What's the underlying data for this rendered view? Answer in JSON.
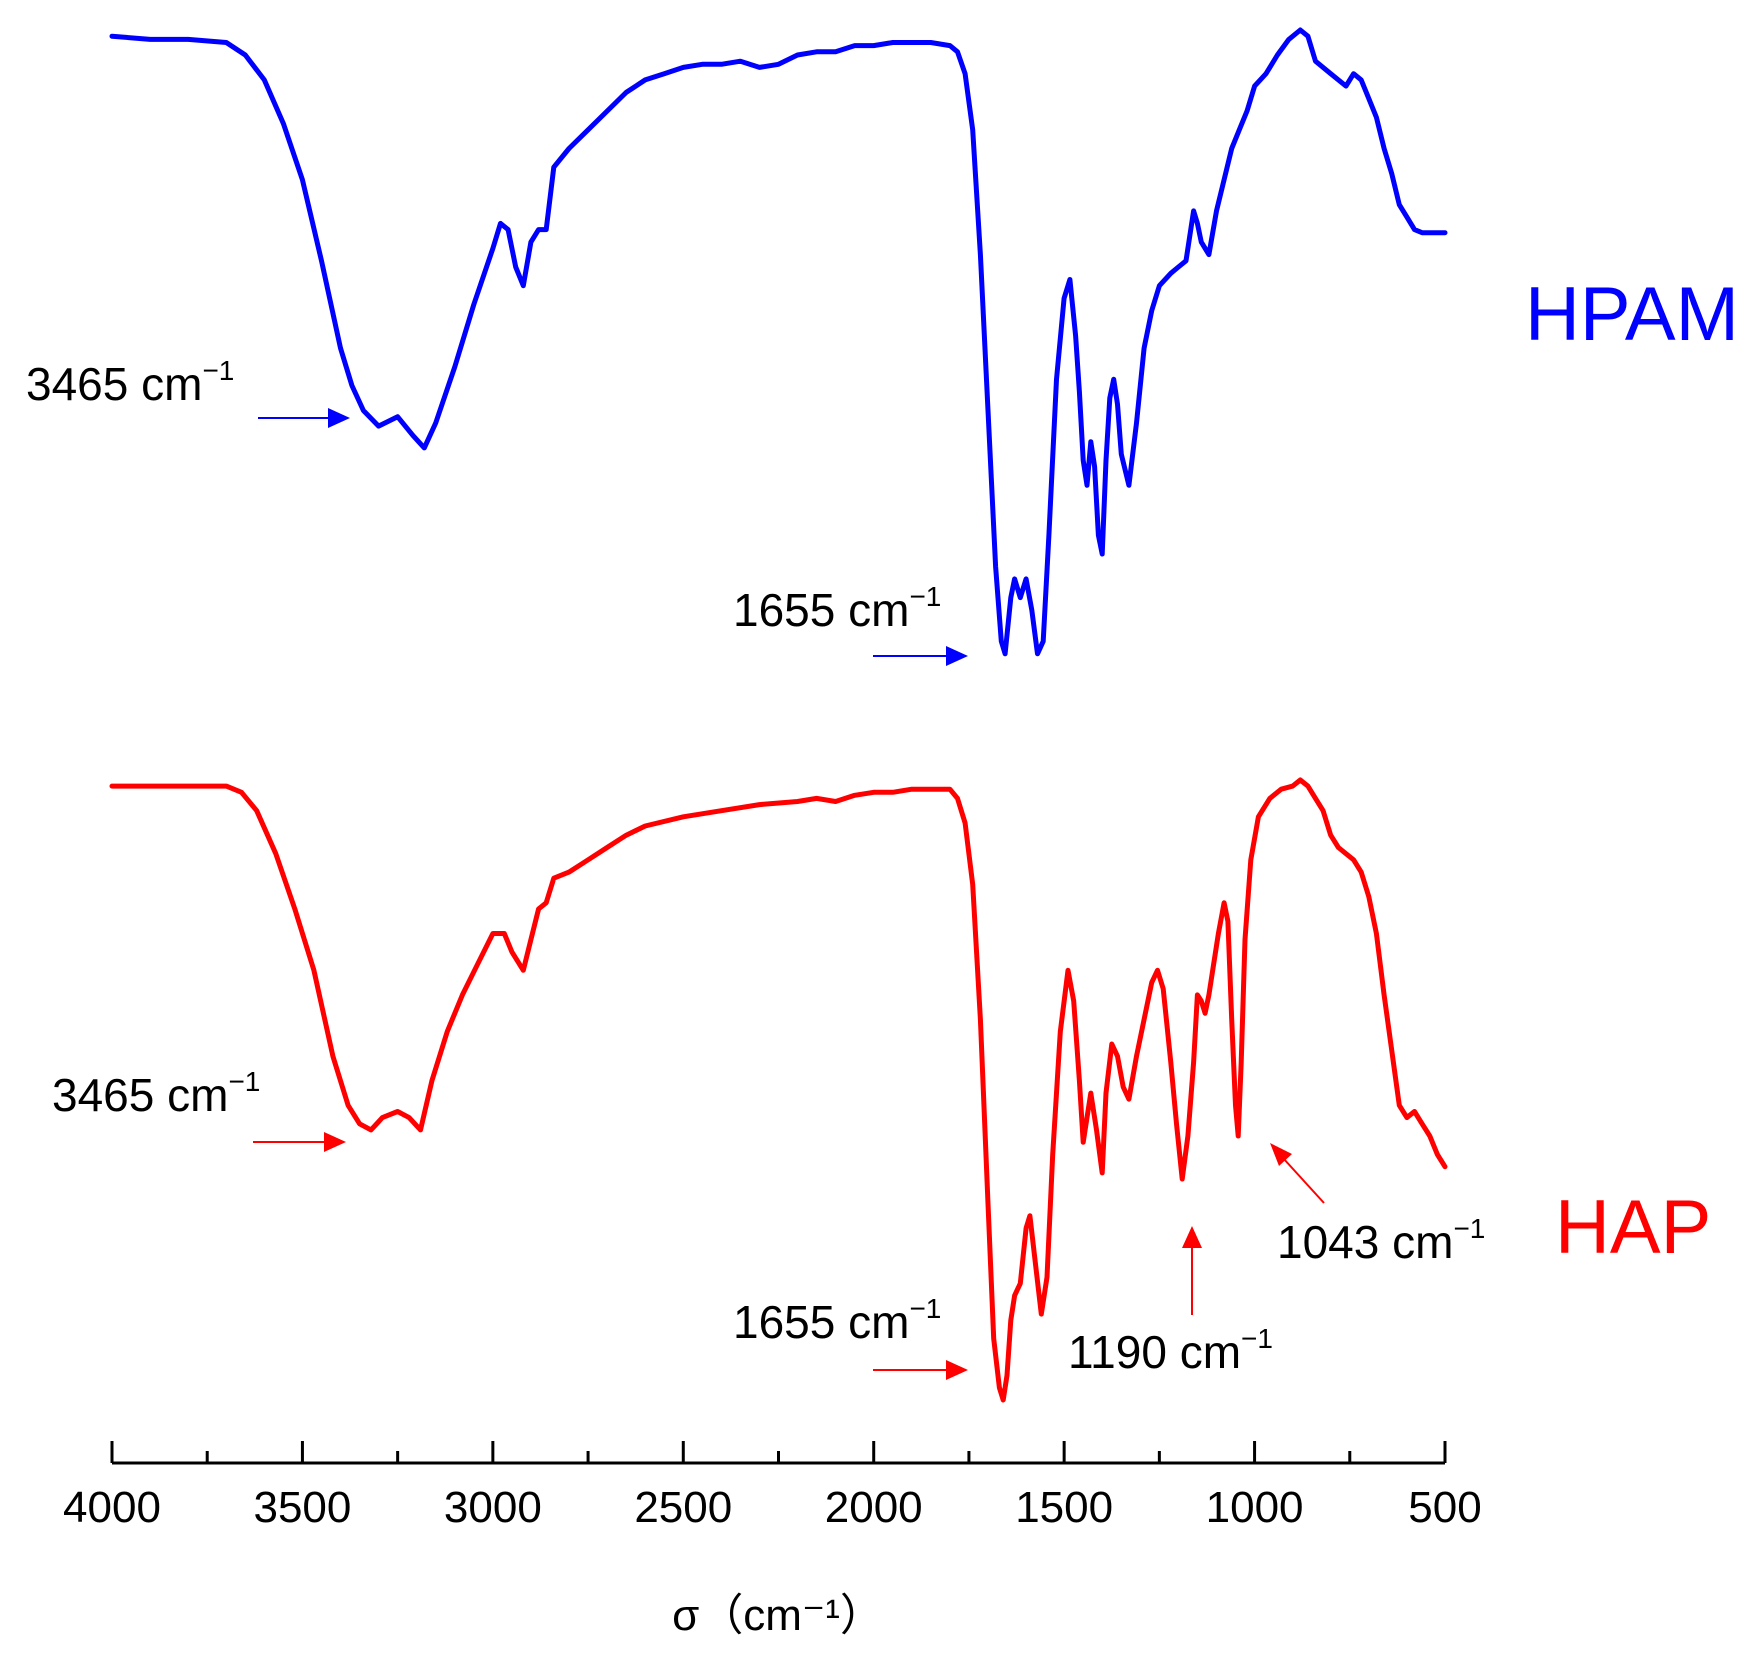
{
  "chart_data": {
    "type": "line",
    "title": "",
    "xlabel": "σ（cm⁻¹）",
    "ylabel": "",
    "xlim": [
      4000,
      500
    ],
    "x_reversed": true,
    "y_axis_shown": false,
    "grid": false,
    "xticks": [
      4000,
      3500,
      3000,
      2500,
      2000,
      1500,
      1000,
      500
    ],
    "series": [
      {
        "name": "HPAM",
        "color": "#0000ff",
        "points": [
          [
            4000,
            100
          ],
          [
            3900,
            99.5
          ],
          [
            3800,
            99.5
          ],
          [
            3700,
            99
          ],
          [
            3650,
            97
          ],
          [
            3600,
            93
          ],
          [
            3550,
            86
          ],
          [
            3500,
            77
          ],
          [
            3450,
            64
          ],
          [
            3400,
            50
          ],
          [
            3370,
            44
          ],
          [
            3340,
            40
          ],
          [
            3300,
            37.5
          ],
          [
            3250,
            39
          ],
          [
            3210,
            36
          ],
          [
            3180,
            34
          ],
          [
            3150,
            38
          ],
          [
            3100,
            47
          ],
          [
            3050,
            57
          ],
          [
            3000,
            66
          ],
          [
            2980,
            70
          ],
          [
            2960,
            69
          ],
          [
            2940,
            63
          ],
          [
            2920,
            60
          ],
          [
            2900,
            67
          ],
          [
            2880,
            69
          ],
          [
            2860,
            69
          ],
          [
            2840,
            79
          ],
          [
            2800,
            82
          ],
          [
            2750,
            85
          ],
          [
            2700,
            88
          ],
          [
            2650,
            91
          ],
          [
            2600,
            93
          ],
          [
            2550,
            94
          ],
          [
            2500,
            95
          ],
          [
            2450,
            95.5
          ],
          [
            2400,
            95.5
          ],
          [
            2350,
            96
          ],
          [
            2300,
            95
          ],
          [
            2250,
            95.5
          ],
          [
            2200,
            97
          ],
          [
            2150,
            97.5
          ],
          [
            2100,
            97.5
          ],
          [
            2050,
            98.5
          ],
          [
            2000,
            98.5
          ],
          [
            1950,
            99
          ],
          [
            1900,
            99
          ],
          [
            1850,
            99
          ],
          [
            1800,
            98.5
          ],
          [
            1780,
            97.5
          ],
          [
            1760,
            94
          ],
          [
            1740,
            85
          ],
          [
            1720,
            65
          ],
          [
            1700,
            40
          ],
          [
            1680,
            15
          ],
          [
            1665,
            3
          ],
          [
            1655,
            1
          ],
          [
            1640,
            10
          ],
          [
            1630,
            13
          ],
          [
            1615,
            10
          ],
          [
            1600,
            13
          ],
          [
            1585,
            8
          ],
          [
            1570,
            1
          ],
          [
            1555,
            3
          ],
          [
            1540,
            20
          ],
          [
            1520,
            45
          ],
          [
            1500,
            58
          ],
          [
            1485,
            61
          ],
          [
            1470,
            52
          ],
          [
            1460,
            43
          ],
          [
            1450,
            32
          ],
          [
            1440,
            28
          ],
          [
            1430,
            35
          ],
          [
            1420,
            31
          ],
          [
            1410,
            20
          ],
          [
            1400,
            17
          ],
          [
            1390,
            32
          ],
          [
            1380,
            42
          ],
          [
            1370,
            45
          ],
          [
            1360,
            41
          ],
          [
            1350,
            33
          ],
          [
            1330,
            28
          ],
          [
            1310,
            38
          ],
          [
            1290,
            50
          ],
          [
            1270,
            56
          ],
          [
            1250,
            60
          ],
          [
            1220,
            62
          ],
          [
            1200,
            63
          ],
          [
            1180,
            64
          ],
          [
            1160,
            72
          ],
          [
            1150,
            70
          ],
          [
            1140,
            67
          ],
          [
            1120,
            65
          ],
          [
            1100,
            72
          ],
          [
            1080,
            77
          ],
          [
            1060,
            82
          ],
          [
            1040,
            85
          ],
          [
            1020,
            88
          ],
          [
            1000,
            92
          ],
          [
            970,
            94
          ],
          [
            940,
            97
          ],
          [
            910,
            99.5
          ],
          [
            880,
            101
          ],
          [
            860,
            100
          ],
          [
            840,
            96
          ],
          [
            820,
            95
          ],
          [
            800,
            94
          ],
          [
            780,
            93
          ],
          [
            760,
            92
          ],
          [
            740,
            94
          ],
          [
            720,
            93
          ],
          [
            700,
            90
          ],
          [
            680,
            87
          ],
          [
            660,
            82
          ],
          [
            640,
            78
          ],
          [
            620,
            73
          ],
          [
            600,
            71
          ],
          [
            580,
            69
          ],
          [
            560,
            68.5
          ],
          [
            540,
            68.5
          ],
          [
            520,
            68.5
          ],
          [
            500,
            68.5
          ]
        ]
      },
      {
        "name": "HAP",
        "color": "#ff0000",
        "points": [
          [
            4000,
            100
          ],
          [
            3900,
            100
          ],
          [
            3800,
            100
          ],
          [
            3700,
            100
          ],
          [
            3660,
            99
          ],
          [
            3620,
            96
          ],
          [
            3570,
            89
          ],
          [
            3520,
            80
          ],
          [
            3470,
            70
          ],
          [
            3420,
            56
          ],
          [
            3380,
            48
          ],
          [
            3350,
            45
          ],
          [
            3320,
            44
          ],
          [
            3290,
            46
          ],
          [
            3250,
            47
          ],
          [
            3220,
            46
          ],
          [
            3190,
            44
          ],
          [
            3160,
            52
          ],
          [
            3120,
            60
          ],
          [
            3080,
            66
          ],
          [
            3040,
            71
          ],
          [
            3000,
            76
          ],
          [
            2970,
            76
          ],
          [
            2950,
            73
          ],
          [
            2920,
            70
          ],
          [
            2900,
            75
          ],
          [
            2880,
            80
          ],
          [
            2860,
            81
          ],
          [
            2840,
            85
          ],
          [
            2800,
            86
          ],
          [
            2750,
            88
          ],
          [
            2700,
            90
          ],
          [
            2650,
            92
          ],
          [
            2600,
            93.5
          ],
          [
            2500,
            95
          ],
          [
            2400,
            96
          ],
          [
            2300,
            97
          ],
          [
            2200,
            97.5
          ],
          [
            2150,
            98
          ],
          [
            2100,
            97.5
          ],
          [
            2050,
            98.5
          ],
          [
            2000,
            99
          ],
          [
            1950,
            99
          ],
          [
            1900,
            99.5
          ],
          [
            1850,
            99.5
          ],
          [
            1800,
            99.5
          ],
          [
            1780,
            98
          ],
          [
            1760,
            94
          ],
          [
            1740,
            84
          ],
          [
            1720,
            62
          ],
          [
            1700,
            32
          ],
          [
            1685,
            10
          ],
          [
            1670,
            2
          ],
          [
            1660,
            0
          ],
          [
            1650,
            4
          ],
          [
            1640,
            13
          ],
          [
            1630,
            17
          ],
          [
            1615,
            19
          ],
          [
            1600,
            28
          ],
          [
            1590,
            30
          ],
          [
            1575,
            22
          ],
          [
            1560,
            14
          ],
          [
            1545,
            20
          ],
          [
            1530,
            40
          ],
          [
            1510,
            60
          ],
          [
            1490,
            70
          ],
          [
            1475,
            65
          ],
          [
            1460,
            52
          ],
          [
            1450,
            42
          ],
          [
            1440,
            46
          ],
          [
            1430,
            50
          ],
          [
            1415,
            44
          ],
          [
            1400,
            37
          ],
          [
            1390,
            50
          ],
          [
            1375,
            58
          ],
          [
            1360,
            56
          ],
          [
            1345,
            51
          ],
          [
            1330,
            49
          ],
          [
            1310,
            56
          ],
          [
            1290,
            62
          ],
          [
            1270,
            68
          ],
          [
            1255,
            70
          ],
          [
            1240,
            67
          ],
          [
            1220,
            55
          ],
          [
            1205,
            45
          ],
          [
            1190,
            36
          ],
          [
            1175,
            43
          ],
          [
            1160,
            55
          ],
          [
            1150,
            66
          ],
          [
            1140,
            65
          ],
          [
            1130,
            63
          ],
          [
            1120,
            66
          ],
          [
            1110,
            70
          ],
          [
            1095,
            76
          ],
          [
            1080,
            81
          ],
          [
            1070,
            78
          ],
          [
            1060,
            62
          ],
          [
            1050,
            48
          ],
          [
            1043,
            43
          ],
          [
            1035,
            55
          ],
          [
            1025,
            75
          ],
          [
            1010,
            88
          ],
          [
            990,
            95
          ],
          [
            960,
            98
          ],
          [
            930,
            99.5
          ],
          [
            900,
            100
          ],
          [
            880,
            101
          ],
          [
            860,
            100
          ],
          [
            840,
            98
          ],
          [
            820,
            96
          ],
          [
            800,
            92
          ],
          [
            780,
            90
          ],
          [
            760,
            89
          ],
          [
            740,
            88
          ],
          [
            720,
            86
          ],
          [
            700,
            82
          ],
          [
            680,
            76
          ],
          [
            660,
            66
          ],
          [
            640,
            57
          ],
          [
            620,
            48
          ],
          [
            600,
            46
          ],
          [
            580,
            47
          ],
          [
            560,
            45
          ],
          [
            540,
            43
          ],
          [
            520,
            40
          ],
          [
            500,
            38
          ]
        ]
      }
    ],
    "annotations": [
      {
        "label": "3465 cm",
        "sup": "−1",
        "series": "HPAM",
        "color": "#0000ff",
        "arrow": "right"
      },
      {
        "label": "1655 cm",
        "sup": "−1",
        "series": "HPAM",
        "color": "#0000ff",
        "arrow": "right"
      },
      {
        "label": "3465 cm",
        "sup": "−1",
        "series": "HAP",
        "color": "#ff0000",
        "arrow": "right"
      },
      {
        "label": "1655 cm",
        "sup": "−1",
        "series": "HAP",
        "color": "#ff0000",
        "arrow": "right"
      },
      {
        "label": "1190 cm",
        "sup": "−1",
        "series": "HAP",
        "color": "#ff0000",
        "arrow": "up"
      },
      {
        "label": "1043 cm",
        "sup": "−1",
        "series": "HAP",
        "color": "#ff0000",
        "arrow": "up-left"
      }
    ]
  }
}
